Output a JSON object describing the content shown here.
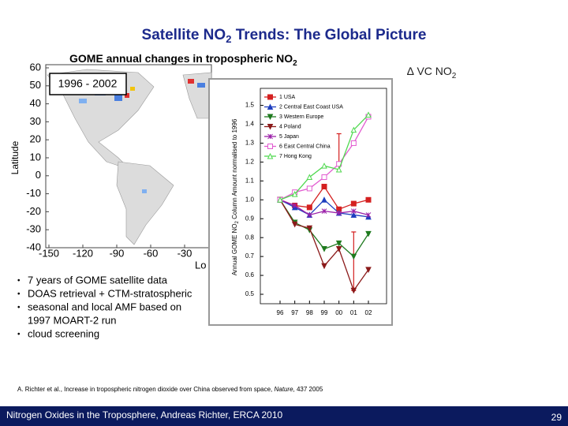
{
  "slide": {
    "title": "Satellite NO",
    "title_sub": "2",
    "title_rest": " Trends: The Global Picture",
    "map_title": "GOME annual changes in tropospheric  NO",
    "map_title_sub": "2",
    "period": "1996 - 2002",
    "delta_label": "∆ VC NO",
    "delta_sub": "2",
    "bullets": [
      [
        "7 years of GOME satellite data"
      ],
      [
        "DOAS retrieval + CTM-stratospheric"
      ],
      [
        "seasonal and local AMF based on",
        "1997 MOART-2 run"
      ],
      [
        "cloud screening"
      ]
    ],
    "reference": "A. Richter et al., Increase in tropospheric nitrogen dioxide over China observed from space, ",
    "reference_journal": "Nature",
    "reference_rest": ", 437 2005",
    "footer": "Nitrogen Oxides in the Troposphere, Andreas Richter, ERCA 2010",
    "page_number": "29"
  },
  "map": {
    "ylabel": "Latitude",
    "xlabel": "Lo",
    "yticks": [
      60,
      50,
      40,
      30,
      20,
      10,
      0,
      -10,
      -20,
      -30,
      -40
    ],
    "xticks": [
      -150,
      -120,
      -90,
      -60,
      -30
    ]
  },
  "chart_data": {
    "type": "line",
    "ylabel": "Annual GOME NO",
    "ylabel_sub": "2",
    "ylabel_rest": " Column Amount normalised to 1996",
    "categories": [
      "96",
      "97",
      "98",
      "99",
      "00",
      "01",
      "02"
    ],
    "ylim": [
      0.45,
      1.59
    ],
    "yticks": [
      0.5,
      0.6,
      0.7,
      0.8,
      0.9,
      {
        "value": 1,
        "label": "1.0"
      },
      1.1,
      1.2,
      1.3,
      1.4,
      1.5
    ],
    "series": [
      {
        "name": "1 USA",
        "color": "#d42020",
        "marker": "square",
        "values": [
          1.0,
          0.97,
          0.96,
          1.07,
          0.95,
          0.98,
          1.0
        ]
      },
      {
        "name": "2 Central East Coast USA",
        "color": "#1f3fbf",
        "marker": "triangle",
        "values": [
          1.0,
          0.96,
          0.92,
          1.0,
          0.93,
          0.92,
          0.91
        ]
      },
      {
        "name": "3 Western Europe",
        "color": "#1f7a1f",
        "marker": "triangle-down",
        "values": [
          1.0,
          0.88,
          0.84,
          0.74,
          0.77,
          0.7,
          0.82
        ]
      },
      {
        "name": "4 Poland",
        "color": "#8b1a1a",
        "marker": "triangle-down",
        "values": [
          1.0,
          0.87,
          0.85,
          0.65,
          0.74,
          0.52,
          0.63
        ]
      },
      {
        "name": "5 Japan",
        "color": "#9a1fa8",
        "marker": "x",
        "values": [
          1.0,
          0.97,
          0.92,
          0.94,
          0.93,
          0.94,
          0.92
        ]
      },
      {
        "name": "6 East Central China",
        "color": "#e25bd0",
        "marker": "open-square",
        "values": [
          1.0,
          1.04,
          1.06,
          1.12,
          1.19,
          1.3,
          1.44
        ]
      },
      {
        "name": "7 Hong Kong",
        "color": "#4fd84f",
        "marker": "open-triangle",
        "values": [
          1.0,
          1.03,
          1.12,
          1.18,
          1.16,
          1.37,
          1.45
        ]
      }
    ],
    "error_bars": {
      "color": "#d42020",
      "bars": [
        {
          "category": "00",
          "low": 1.15,
          "high": 1.35
        },
        {
          "category": "01",
          "low": 0.52,
          "high": 0.83
        }
      ]
    }
  }
}
